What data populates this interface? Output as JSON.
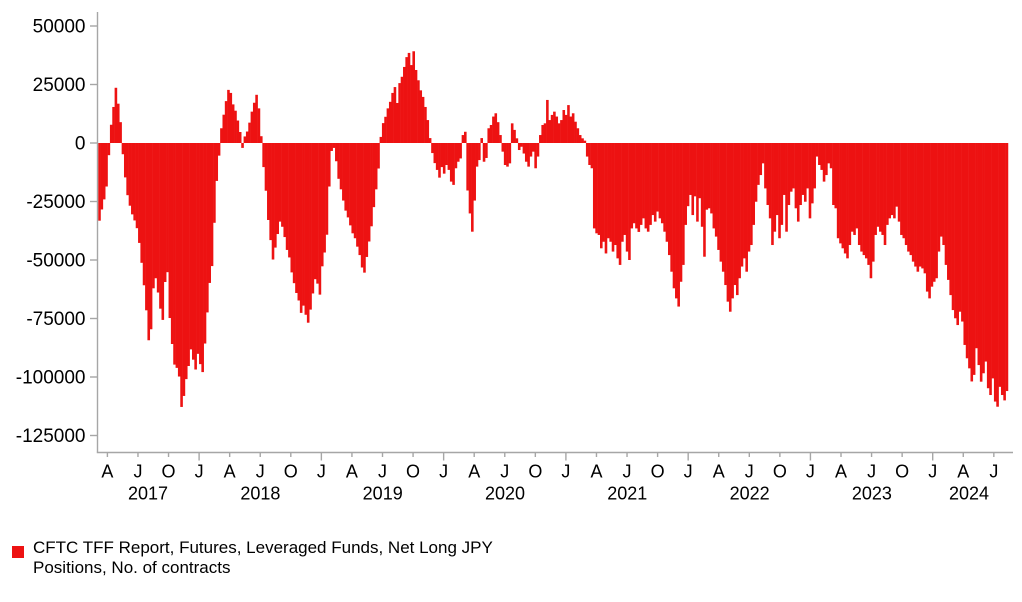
{
  "legend": {
    "label_line1": "CFTC TFF Report, Futures, Leveraged Funds, Net Long JPY",
    "label_line2": "Positions, No. of contracts"
  },
  "colors": {
    "series_red": "#ED1212",
    "axis_gray": "#A6A6A6",
    "text_black": "#000000"
  },
  "chart_data": {
    "type": "bar",
    "title": "",
    "xlabel": "",
    "ylabel": "",
    "frequency": "weekly",
    "x_range": [
      "2017-03",
      "2024-08"
    ],
    "ylim": [
      -133000,
      56000
    ],
    "grid": false,
    "legend_position": "bottom-left",
    "y_axis": {
      "ticks": [
        50000,
        25000,
        0,
        -25000,
        -50000,
        -75000,
        -100000,
        -125000
      ],
      "tick_labels": [
        "50000",
        "25000",
        "0",
        "-25000",
        "-50000",
        "-75000",
        "-100000",
        "-125000"
      ]
    },
    "x_axis": {
      "month_labels": [
        "A",
        "J",
        "O",
        "J",
        "A",
        "J",
        "O",
        "J",
        "A",
        "J",
        "O",
        "J",
        "A",
        "J",
        "O",
        "J",
        "A",
        "J",
        "O",
        "J",
        "A",
        "J",
        "O",
        "J",
        "A",
        "J",
        "O",
        "J",
        "A",
        "J"
      ],
      "month_label_meaning": "A=April, J=July/January, O=October; first label is April 2017, last is July 2024",
      "year_labels": [
        "2017",
        "2018",
        "2019",
        "2020",
        "2021",
        "2022",
        "2023",
        "2024"
      ]
    },
    "series": [
      {
        "name": "CFTC TFF Report, Futures, Leveraged Funds, Net Long JPY Positions, No. of contracts",
        "color": "#ED1212",
        "start_week": "2017-03-07",
        "values": [
          -33200,
          -28400,
          -24100,
          -18600,
          -5200,
          7800,
          15400,
          23600,
          16800,
          8900,
          -4800,
          -14700,
          -22300,
          -26800,
          -30500,
          -33100,
          -36400,
          -42700,
          -51200,
          -60800,
          -71500,
          -84300,
          -79600,
          -62100,
          -57800,
          -63900,
          -70800,
          -75600,
          -59400,
          -55200,
          -74800,
          -85900,
          -94700,
          -96100,
          -99800,
          -112800,
          -108100,
          -100900,
          -95300,
          -88200,
          -92600,
          -96800,
          -90100,
          -94500,
          -97900,
          -85700,
          -72400,
          -59800,
          -52600,
          -34100,
          -16200,
          -5400,
          6300,
          12100,
          17900,
          22700,
          21400,
          16500,
          13800,
          9600,
          4700,
          -2100,
          2800,
          4900,
          8700,
          13400,
          17200,
          20600,
          14800,
          2900,
          -10300,
          -20400,
          -32900,
          -41500,
          -49800,
          -44700,
          -38900,
          -33600,
          -35800,
          -40200,
          -45700,
          -48900,
          -55300,
          -59900,
          -64100,
          -67300,
          -72600,
          -69500,
          -73400,
          -76800,
          -71200,
          -64300,
          -58200,
          -60100,
          -64800,
          -52700,
          -46800,
          -39200,
          -18600,
          -3400,
          -2100,
          -7800,
          -15300,
          -19800,
          -24600,
          -28900,
          -31800,
          -35200,
          -38600,
          -40700,
          -44300,
          -47900,
          -53200,
          -55400,
          -48700,
          -42100,
          -35600,
          -27400,
          -19800,
          -10900,
          2600,
          8500,
          11200,
          14800,
          17600,
          21400,
          23900,
          17100,
          25600,
          28300,
          32500,
          36700,
          38500,
          33300,
          39200,
          31200,
          26800,
          22500,
          19700,
          15400,
          9800,
          2100,
          -4300,
          -8600,
          -11500,
          -14800,
          -10300,
          -13100,
          -9400,
          -11500,
          -16500,
          -17900,
          -10800,
          -8000,
          -6600,
          3400,
          4800,
          -20300,
          -30100,
          -37900,
          -24600,
          -10100,
          -7300,
          2100,
          -8000,
          -6400,
          6300,
          7700,
          11300,
          12700,
          8900,
          3400,
          -3700,
          -9400,
          -10100,
          -8700,
          8400,
          5600,
          2000,
          -3000,
          -1600,
          -4500,
          -8000,
          -10100,
          -5800,
          -3700,
          -10800,
          -5800,
          3400,
          7700,
          8400,
          18400,
          9800,
          12000,
          13400,
          11300,
          8400,
          9800,
          14100,
          12000,
          16200,
          11300,
          12700,
          9100,
          6300,
          3400,
          2000,
          1000,
          -5800,
          -9400,
          -10800,
          -36500,
          -38600,
          -39300,
          -45000,
          -42200,
          -47200,
          -40700,
          -42200,
          -46400,
          -43600,
          -49300,
          -52100,
          -42200,
          -39300,
          -46400,
          -50000,
          -36500,
          -34300,
          -36500,
          -38000,
          -35000,
          -32200,
          -36500,
          -37900,
          -35000,
          -30800,
          -33600,
          -29300,
          -32200,
          -34300,
          -37900,
          -42200,
          -47900,
          -55000,
          -62100,
          -66400,
          -69900,
          -59300,
          -52100,
          -35000,
          -27000,
          -22200,
          -30800,
          -22800,
          -33600,
          -23600,
          -35800,
          -48600,
          -28500,
          -27900,
          -30100,
          -36500,
          -40000,
          -45700,
          -50700,
          -55000,
          -60700,
          -67800,
          -72100,
          -66400,
          -60700,
          -65000,
          -57800,
          -52800,
          -49300,
          -55000,
          -46400,
          -43600,
          -35000,
          -25100,
          -17900,
          -13700,
          -8700,
          -19400,
          -26500,
          -32200,
          -43600,
          -37900,
          -30800,
          -40700,
          -35000,
          -22200,
          -37900,
          -26500,
          -20800,
          -19400,
          -27900,
          -33600,
          -26500,
          -22200,
          -25100,
          -19400,
          -32200,
          -25800,
          -19400,
          -5800,
          -9400,
          -11500,
          -16500,
          -13700,
          -8700,
          -10800,
          -26500,
          -27900,
          -40700,
          -42900,
          -45000,
          -47200,
          -49300,
          -43600,
          -37900,
          -39300,
          -36500,
          -43600,
          -46400,
          -47900,
          -49300,
          -52100,
          -57800,
          -50700,
          -39300,
          -35800,
          -37900,
          -39300,
          -43600,
          -35000,
          -32200,
          -30800,
          -32200,
          -27200,
          -33600,
          -39300,
          -40700,
          -43600,
          -46400,
          -47900,
          -50700,
          -52800,
          -55000,
          -52800,
          -53600,
          -55700,
          -63500,
          -66400,
          -61400,
          -59300,
          -57800,
          -46400,
          -40000,
          -43600,
          -52100,
          -58500,
          -65000,
          -71400,
          -74900,
          -77800,
          -72100,
          -76300,
          -86300,
          -92000,
          -96300,
          -101900,
          -99100,
          -87700,
          -94900,
          -102000,
          -98400,
          -93400,
          -104800,
          -107700,
          -100600,
          -110500,
          -112700,
          -104200,
          -107700,
          -110000,
          -106000
        ]
      }
    ]
  }
}
